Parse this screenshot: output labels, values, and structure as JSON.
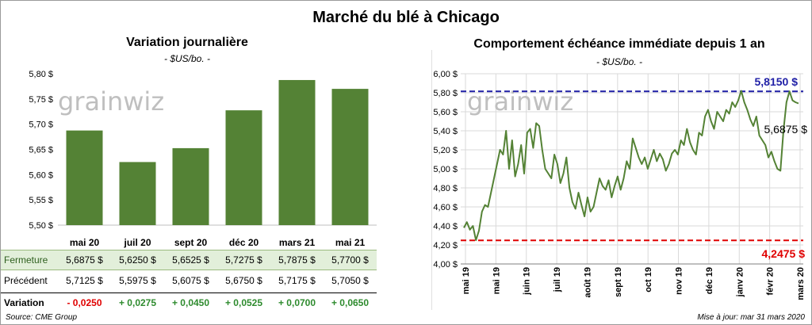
{
  "title": "Marché du blé à Chicago",
  "left_chart": {
    "title": "Variation  journalière",
    "subtitle": "- $US/bo. -"
  },
  "right_chart": {
    "title": "Comportement  échéance  immédiate  depuis 1 an",
    "subtitle": "- $US/bo. -",
    "annotation_high": "5,8150 $",
    "annotation_low": "4,2475 $",
    "annotation_last": "5,6875 $"
  },
  "watermark": "grainwiz",
  "table": {
    "rows": [
      {
        "label": "Fermeture",
        "values": [
          "5,6875  $",
          "5,6250  $",
          "5,6525  $",
          "5,7275  $",
          "5,7875  $",
          "5,7700  $"
        ]
      },
      {
        "label": "Précédent",
        "values": [
          "5,7125  $",
          "5,5975  $",
          "5,6075  $",
          "5,6750  $",
          "5,7175  $",
          "5,7050  $"
        ]
      },
      {
        "label": "Variation",
        "values": [
          "- 0,0250",
          "+ 0,0275",
          "+ 0,0450",
          "+ 0,0525",
          "+ 0,0700",
          "+ 0,0650"
        ]
      }
    ]
  },
  "footer": {
    "source": "Source: CME Group",
    "update": "Mise à jour: mar 31 mars 2020"
  },
  "colors": {
    "bar": "#548235",
    "line": "#548235",
    "high_line": "#1f1fa6",
    "low_line": "#e00000"
  },
  "chart_data": [
    {
      "type": "bar",
      "title": "Variation  journalière",
      "subtitle": "- $US/bo. -",
      "categories": [
        "mai 20",
        "juil 20",
        "sept 20",
        "déc 20",
        "mars 21",
        "mai 21"
      ],
      "values": [
        5.6875,
        5.625,
        5.6525,
        5.7275,
        5.7875,
        5.77
      ],
      "ylim": [
        5.5,
        5.8
      ],
      "yticks": [
        "5,50 $",
        "5,55 $",
        "5,60 $",
        "5,65 $",
        "5,70 $",
        "5,75 $",
        "5,80 $"
      ],
      "grid": false
    },
    {
      "type": "line",
      "title": "Comportement  échéance  immédiate  depuis 1 an",
      "subtitle": "- $US/bo. -",
      "ylim": [
        4.0,
        6.0
      ],
      "yticks": [
        "4,00 $",
        "4,20 $",
        "4,40 $",
        "4,60 $",
        "4,80 $",
        "5,00 $",
        "5,20 $",
        "5,40 $",
        "5,60 $",
        "5,80 $",
        "6,00 $"
      ],
      "xticks": [
        "mai 19",
        "mai 19",
        "juin 19",
        "juil 19",
        "août 19",
        "sept 19",
        "oct 19",
        "nov 19",
        "déc 19",
        "janv 20",
        "févr 20",
        "mars 20"
      ],
      "high": 5.815,
      "low": 4.2475,
      "last": 5.6875,
      "grid": true,
      "series": [
        {
          "values": [
            4.38,
            4.44,
            4.36,
            4.4,
            4.25,
            4.35,
            4.55,
            4.62,
            4.6,
            4.75,
            4.9,
            5.05,
            5.2,
            5.15,
            5.4,
            5.0,
            5.3,
            4.92,
            5.05,
            5.25,
            4.95,
            5.38,
            5.42,
            5.22,
            5.48,
            5.45,
            5.2,
            5.0,
            4.95,
            4.9,
            5.15,
            5.05,
            4.85,
            4.95,
            5.12,
            4.8,
            4.65,
            4.58,
            4.75,
            4.62,
            4.5,
            4.7,
            4.55,
            4.6,
            4.75,
            4.9,
            4.82,
            4.78,
            4.88,
            4.7,
            4.82,
            4.92,
            4.78,
            4.9,
            5.08,
            5.0,
            5.32,
            5.22,
            5.12,
            5.05,
            5.12,
            5.0,
            5.1,
            5.2,
            5.08,
            5.16,
            5.1,
            4.98,
            5.05,
            5.16,
            5.2,
            5.15,
            5.3,
            5.25,
            5.42,
            5.28,
            5.2,
            5.15,
            5.38,
            5.35,
            5.55,
            5.62,
            5.5,
            5.42,
            5.6,
            5.55,
            5.5,
            5.62,
            5.58,
            5.7,
            5.65,
            5.72,
            5.82,
            5.7,
            5.62,
            5.52,
            5.45,
            5.55,
            5.35,
            5.3,
            5.25,
            5.12,
            5.18,
            5.08,
            5.0,
            4.98,
            5.4,
            5.7,
            5.815,
            5.72,
            5.7,
            5.6875
          ]
        }
      ]
    }
  ]
}
